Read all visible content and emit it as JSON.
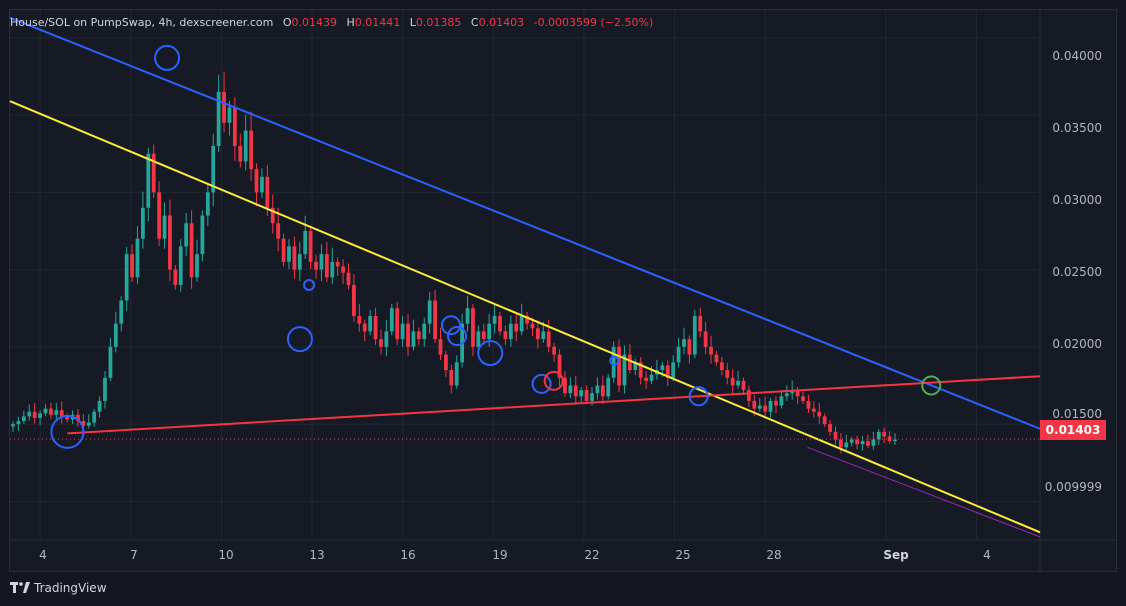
{
  "header": {
    "title": "House/SOL on PumpSwap, 4h, dexscreener.com",
    "o_label": "O",
    "o_value": "0.01439",
    "h_label": "H",
    "h_value": "0.01441",
    "l_label": "L",
    "l_value": "0.01385",
    "c_label": "C",
    "c_value": "0.01403",
    "change": "-0.0003599 (−2.50%)"
  },
  "last_price": "0.01403",
  "footer": {
    "brand": "TradingView"
  },
  "colors": {
    "up": "#26a69a",
    "down": "#f23645",
    "channel_top": "#2962ff",
    "trend_yellow": "#ffeb3b",
    "support_red": "#f23645",
    "circle_blue": "#2962ff",
    "circle_red": "#f23645",
    "circle_green": "#4caf50",
    "purple_line": "#9c27b0"
  },
  "chart_data": {
    "type": "candlestick",
    "x_tick_labels": [
      "4",
      "7",
      "10",
      "13",
      "16",
      "19",
      "22",
      "25",
      "28",
      "Sep",
      "4"
    ],
    "y_tick_labels": [
      "0.04000",
      "0.03500",
      "0.03000",
      "0.02500",
      "0.02000",
      "0.01500",
      "0.009999"
    ],
    "ylim": [
      0.0075,
      0.0418
    ],
    "xlim": [
      3.0,
      37.1
    ],
    "y_scale": "linear",
    "candles_close": [
      0.015,
      0.0152,
      0.0155,
      0.0158,
      0.0154,
      0.0157,
      0.016,
      0.0156,
      0.0159,
      0.0155,
      0.0153,
      0.0156,
      0.0152,
      0.0149,
      0.0151,
      0.0158,
      0.0165,
      0.018,
      0.02,
      0.0215,
      0.023,
      0.026,
      0.0245,
      0.027,
      0.029,
      0.0325,
      0.03,
      0.027,
      0.0285,
      0.025,
      0.024,
      0.0265,
      0.028,
      0.0245,
      0.026,
      0.0285,
      0.03,
      0.033,
      0.0365,
      0.0345,
      0.0355,
      0.033,
      0.032,
      0.034,
      0.0315,
      0.03,
      0.031,
      0.029,
      0.028,
      0.027,
      0.0255,
      0.0265,
      0.025,
      0.026,
      0.0275,
      0.0255,
      0.025,
      0.026,
      0.0245,
      0.0255,
      0.0252,
      0.0248,
      0.024,
      0.022,
      0.0215,
      0.021,
      0.022,
      0.0205,
      0.02,
      0.021,
      0.0225,
      0.0205,
      0.0215,
      0.02,
      0.021,
      0.0205,
      0.0215,
      0.023,
      0.0205,
      0.0195,
      0.0185,
      0.0175,
      0.019,
      0.0215,
      0.0225,
      0.02,
      0.021,
      0.0205,
      0.0215,
      0.022,
      0.021,
      0.0205,
      0.0215,
      0.021,
      0.022,
      0.0215,
      0.0212,
      0.0205,
      0.021,
      0.02,
      0.0195,
      0.018,
      0.017,
      0.0175,
      0.0168,
      0.0172,
      0.0165,
      0.017,
      0.0175,
      0.0168,
      0.018,
      0.02,
      0.0175,
      0.0195,
      0.0185,
      0.019,
      0.018,
      0.0178,
      0.0182,
      0.0185,
      0.0188,
      0.018,
      0.019,
      0.02,
      0.0205,
      0.0195,
      0.022,
      0.021,
      0.02,
      0.0195,
      0.019,
      0.0185,
      0.018,
      0.0175,
      0.0178,
      0.0172,
      0.0165,
      0.016,
      0.0162,
      0.0158,
      0.0165,
      0.0162,
      0.0168,
      0.017,
      0.0172,
      0.0168,
      0.0165,
      0.016,
      0.0158,
      0.0155,
      0.015,
      0.0145,
      0.014,
      0.0135,
      0.0138,
      0.014,
      0.0137,
      0.0139,
      0.0136,
      0.014,
      0.0145,
      0.0142,
      0.0139,
      0.014
    ],
    "overlays": {
      "channel_top_line": [
        [
          3.0,
          0.0413
        ],
        [
          37.1,
          0.0147
        ]
      ],
      "yellow_trend_line": [
        [
          3.0,
          0.0359
        ],
        [
          37.1,
          0.008
        ]
      ],
      "red_support_line": [
        [
          4.9,
          0.0144
        ],
        [
          37.1,
          0.0181
        ]
      ],
      "purple_line": [
        [
          29.4,
          0.0135
        ],
        [
          37.1,
          0.0077
        ]
      ],
      "last_price_line": 0.01403
    },
    "annotations": [
      {
        "color": "blue",
        "x": 4.9,
        "y": 0.0145,
        "size": "large"
      },
      {
        "color": "blue",
        "x": 8.2,
        "y": 0.0387,
        "size": "medium"
      },
      {
        "color": "blue",
        "x": 12.6,
        "y": 0.0205,
        "size": "medium"
      },
      {
        "color": "blue",
        "x": 12.9,
        "y": 0.024,
        "size": "small"
      },
      {
        "color": "blue",
        "x": 17.6,
        "y": 0.0214,
        "size": "small"
      },
      {
        "color": "blue",
        "x": 17.8,
        "y": 0.0207,
        "size": "small"
      },
      {
        "color": "blue",
        "x": 18.9,
        "y": 0.0196,
        "size": "medium"
      },
      {
        "color": "blue",
        "x": 20.6,
        "y": 0.0176,
        "size": "small"
      },
      {
        "color": "red",
        "x": 21.0,
        "y": 0.0178,
        "size": "small"
      },
      {
        "color": "blue",
        "x": 23.0,
        "y": 0.0191,
        "size": "small"
      },
      {
        "color": "blue",
        "x": 25.8,
        "y": 0.0168,
        "size": "small"
      },
      {
        "color": "green",
        "x": 33.5,
        "y": 0.0175,
        "size": "small"
      }
    ]
  }
}
